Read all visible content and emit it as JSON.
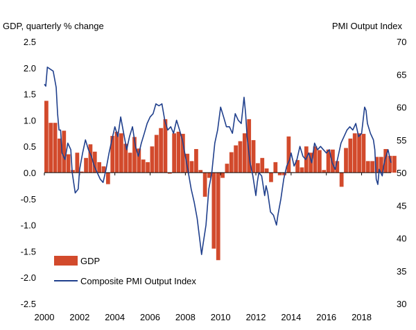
{
  "chart_data": {
    "type": "bar+line",
    "left_axis_title": "GDP, quarterly % change",
    "right_axis_title": "PMI Output  Index",
    "left_ylim": [
      -2.5,
      2.5
    ],
    "left_ticks": [
      "2.5",
      "2.0",
      "1.5",
      "1.0",
      "0.5",
      "0.0",
      "-0.5",
      "-1.0",
      "-1.5",
      "-2.0",
      "-2.5"
    ],
    "right_ylim": [
      30,
      70
    ],
    "right_ticks": [
      "70",
      "65",
      "60",
      "55",
      "50",
      "45",
      "40",
      "35",
      "30"
    ],
    "x_range": [
      2000,
      2019.67
    ],
    "x_ticks": [
      "2000",
      "2002",
      "2004",
      "2006",
      "2008",
      "2010",
      "2012",
      "2014",
      "2016",
      "2018"
    ],
    "legend": [
      {
        "name": "GDP",
        "marker": "bar",
        "color": "#d24a2c"
      },
      {
        "name": "Composite PMI Output Index",
        "marker": "line",
        "color": "#1f3f8c"
      }
    ],
    "series": [
      {
        "name": "GDP",
        "type": "bar",
        "axis": "left",
        "color": "#d24a2c",
        "start": 2000.0,
        "step": 0.25,
        "values": [
          1.37,
          0.95,
          0.95,
          0.65,
          0.8,
          0.35,
          0.05,
          0.38,
          0.02,
          0.28,
          0.54,
          0.4,
          0.2,
          0.12,
          -0.22,
          0.7,
          0.78,
          0.75,
          0.55,
          0.38,
          0.68,
          0.46,
          0.25,
          0.2,
          0.5,
          0.72,
          0.85,
          1.02,
          -0.02,
          0.75,
          0.78,
          0.74,
          0.36,
          0.22,
          0.45,
          0.05,
          -0.46,
          -0.1,
          -1.45,
          -1.67,
          -0.1,
          0.17,
          0.39,
          0.52,
          0.6,
          0.75,
          1.02,
          0.62,
          0.18,
          0.28,
          0.08,
          -0.18,
          0.2,
          -0.05,
          -0.05,
          0.69,
          0.01,
          0.24,
          0.1,
          0.5,
          0.38,
          0.5,
          0.43,
          0.05,
          0.44,
          0.44,
          0.22,
          -0.27,
          0.47,
          0.65,
          0.75,
          0.75,
          0.74,
          0.22,
          0.22,
          0.3,
          0.3,
          0.45,
          0.32,
          0.32
        ],
        "value_format": "GDP quarterly % change"
      },
      {
        "name": "Composite PMI Output Index",
        "type": "line",
        "axis": "right",
        "color": "#1f3f8c",
        "points": [
          [
            2000.0,
            63.5
          ],
          [
            2000.08,
            63.2
          ],
          [
            2000.17,
            66.1
          ],
          [
            2000.33,
            65.8
          ],
          [
            2000.5,
            65.5
          ],
          [
            2000.67,
            63.0
          ],
          [
            2000.75,
            59.0
          ],
          [
            2000.83,
            56.5
          ],
          [
            2000.92,
            56.5
          ],
          [
            2001.0,
            53.0
          ],
          [
            2001.17,
            52.0
          ],
          [
            2001.33,
            54.5
          ],
          [
            2001.5,
            53.5
          ],
          [
            2001.58,
            50.0
          ],
          [
            2001.75,
            46.9
          ],
          [
            2001.92,
            47.5
          ],
          [
            2002.0,
            50.5
          ],
          [
            2002.17,
            53.0
          ],
          [
            2002.33,
            55.0
          ],
          [
            2002.5,
            53.5
          ],
          [
            2002.67,
            52.5
          ],
          [
            2002.83,
            51.0
          ],
          [
            2003.0,
            50.0
          ],
          [
            2003.17,
            49.0
          ],
          [
            2003.33,
            48.5
          ],
          [
            2003.5,
            50.5
          ],
          [
            2003.67,
            53.0
          ],
          [
            2003.83,
            55.0
          ],
          [
            2004.0,
            57.0
          ],
          [
            2004.17,
            55.5
          ],
          [
            2004.33,
            58.5
          ],
          [
            2004.5,
            56.0
          ],
          [
            2004.67,
            53.5
          ],
          [
            2004.83,
            55.5
          ],
          [
            2005.0,
            57.0
          ],
          [
            2005.17,
            54.0
          ],
          [
            2005.33,
            52.5
          ],
          [
            2005.5,
            54.5
          ],
          [
            2005.67,
            56.0
          ],
          [
            2005.83,
            57.5
          ],
          [
            2006.0,
            58.5
          ],
          [
            2006.17,
            59.0
          ],
          [
            2006.33,
            60.5
          ],
          [
            2006.5,
            60.2
          ],
          [
            2006.67,
            60.5
          ],
          [
            2006.83,
            58.0
          ],
          [
            2007.0,
            56.5
          ],
          [
            2007.17,
            57.0
          ],
          [
            2007.33,
            56.0
          ],
          [
            2007.5,
            58.0
          ],
          [
            2007.67,
            56.5
          ],
          [
            2007.83,
            55.0
          ],
          [
            2008.0,
            52.5
          ],
          [
            2008.17,
            50.0
          ],
          [
            2008.33,
            47.5
          ],
          [
            2008.5,
            45.5
          ],
          [
            2008.67,
            43.0
          ],
          [
            2008.83,
            39.5
          ],
          [
            2008.92,
            37.5
          ],
          [
            2009.0,
            39.0
          ],
          [
            2009.17,
            42.0
          ],
          [
            2009.33,
            47.5
          ],
          [
            2009.5,
            50.0
          ],
          [
            2009.67,
            54.5
          ],
          [
            2009.83,
            56.5
          ],
          [
            2010.0,
            60.0
          ],
          [
            2010.17,
            58.5
          ],
          [
            2010.33,
            57.0
          ],
          [
            2010.5,
            57.0
          ],
          [
            2010.67,
            56.0
          ],
          [
            2010.83,
            59.0
          ],
          [
            2011.0,
            58.0
          ],
          [
            2011.17,
            57.5
          ],
          [
            2011.25,
            59.5
          ],
          [
            2011.33,
            61.5
          ],
          [
            2011.42,
            59.0
          ],
          [
            2011.5,
            55.5
          ],
          [
            2011.67,
            51.5
          ],
          [
            2011.83,
            49.5
          ],
          [
            2012.0,
            46.5
          ],
          [
            2012.08,
            48.5
          ],
          [
            2012.17,
            50.0
          ],
          [
            2012.33,
            49.5
          ],
          [
            2012.5,
            46.5
          ],
          [
            2012.58,
            48.0
          ],
          [
            2012.67,
            47.0
          ],
          [
            2012.83,
            44.0
          ],
          [
            2013.0,
            43.5
          ],
          [
            2013.17,
            42.0
          ],
          [
            2013.25,
            43.5
          ],
          [
            2013.42,
            46.0
          ],
          [
            2013.58,
            49.0
          ],
          [
            2013.75,
            51.0
          ],
          [
            2013.92,
            52.0
          ],
          [
            2014.0,
            53.0
          ],
          [
            2014.17,
            51.0
          ],
          [
            2014.33,
            52.0
          ],
          [
            2014.5,
            54.0
          ],
          [
            2014.67,
            52.5
          ],
          [
            2014.83,
            52.0
          ],
          [
            2015.0,
            53.0
          ],
          [
            2015.17,
            51.5
          ],
          [
            2015.33,
            54.5
          ],
          [
            2015.5,
            53.5
          ],
          [
            2015.67,
            54.0
          ],
          [
            2015.83,
            53.5
          ],
          [
            2016.0,
            53.0
          ],
          [
            2016.17,
            53.5
          ],
          [
            2016.33,
            51.5
          ],
          [
            2016.5,
            50.5
          ],
          [
            2016.67,
            52.5
          ],
          [
            2016.83,
            54.5
          ],
          [
            2017.0,
            55.5
          ],
          [
            2017.17,
            56.5
          ],
          [
            2017.33,
            57.0
          ],
          [
            2017.5,
            56.5
          ],
          [
            2017.67,
            57.5
          ],
          [
            2017.83,
            55.5
          ],
          [
            2018.0,
            56.0
          ],
          [
            2018.17,
            60.0
          ],
          [
            2018.25,
            59.5
          ],
          [
            2018.33,
            57.5
          ],
          [
            2018.5,
            56.0
          ],
          [
            2018.67,
            55.0
          ],
          [
            2018.75,
            53.5
          ],
          [
            2018.83,
            49.0
          ],
          [
            2018.92,
            48.2
          ],
          [
            2019.0,
            50.5
          ],
          [
            2019.17,
            49.5
          ],
          [
            2019.25,
            51.0
          ],
          [
            2019.33,
            52.0
          ],
          [
            2019.5,
            53.5
          ],
          [
            2019.58,
            52.5
          ],
          [
            2019.67,
            51.5
          ]
        ]
      }
    ]
  }
}
